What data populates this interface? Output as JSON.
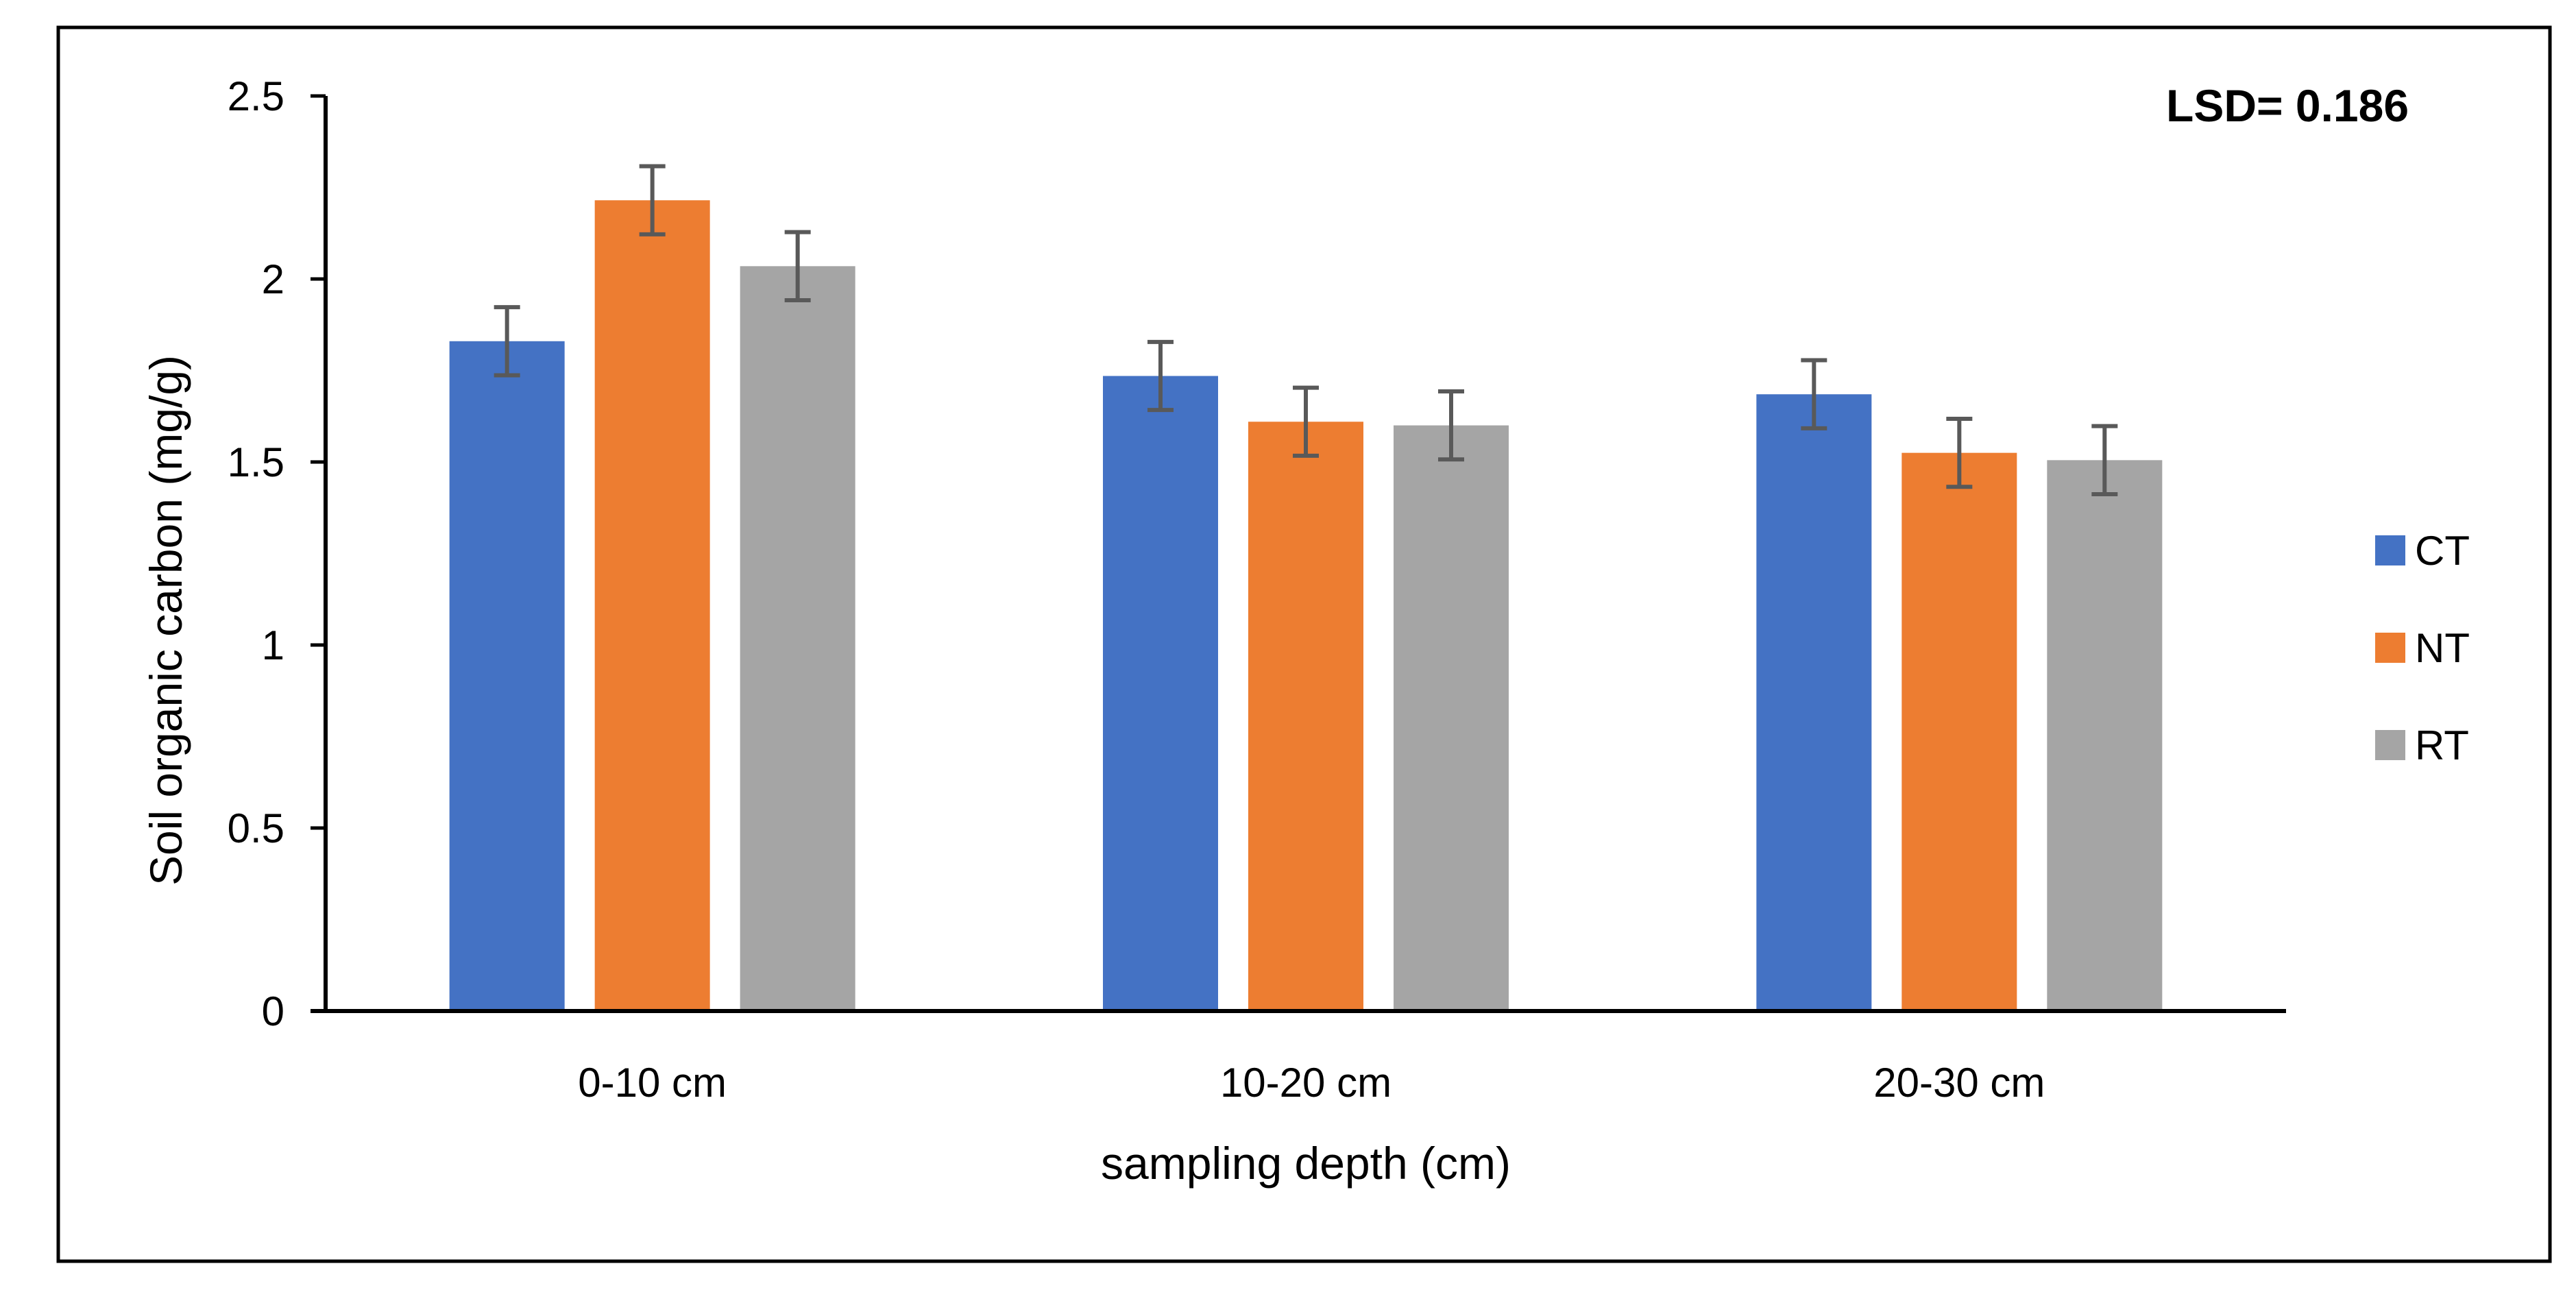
{
  "chart_data": {
    "type": "bar",
    "title": "",
    "annotation": "LSD= 0.186",
    "xlabel": "sampling depth (cm)",
    "ylabel": "Soil organic carbon (mg/g)",
    "categories": [
      "0-10 cm",
      "10-20 cm",
      "20-30 cm"
    ],
    "yticks": [
      "0",
      "0.5",
      "1",
      "1.5",
      "2",
      "2.5"
    ],
    "ylim": [
      0,
      2.5
    ],
    "grid": false,
    "legend_position": "right",
    "series": [
      {
        "name": "CT",
        "color": "#4472C4",
        "values": [
          1.83,
          1.735,
          1.685
        ],
        "errors": [
          0.093,
          0.093,
          0.093
        ]
      },
      {
        "name": "NT",
        "color": "#ED7D31",
        "values": [
          2.215,
          1.61,
          1.525
        ],
        "errors": [
          0.093,
          0.093,
          0.093
        ]
      },
      {
        "name": "RT",
        "color": "#A5A5A5",
        "values": [
          2.035,
          1.6,
          1.505
        ],
        "errors": [
          0.093,
          0.093,
          0.093
        ]
      }
    ]
  }
}
